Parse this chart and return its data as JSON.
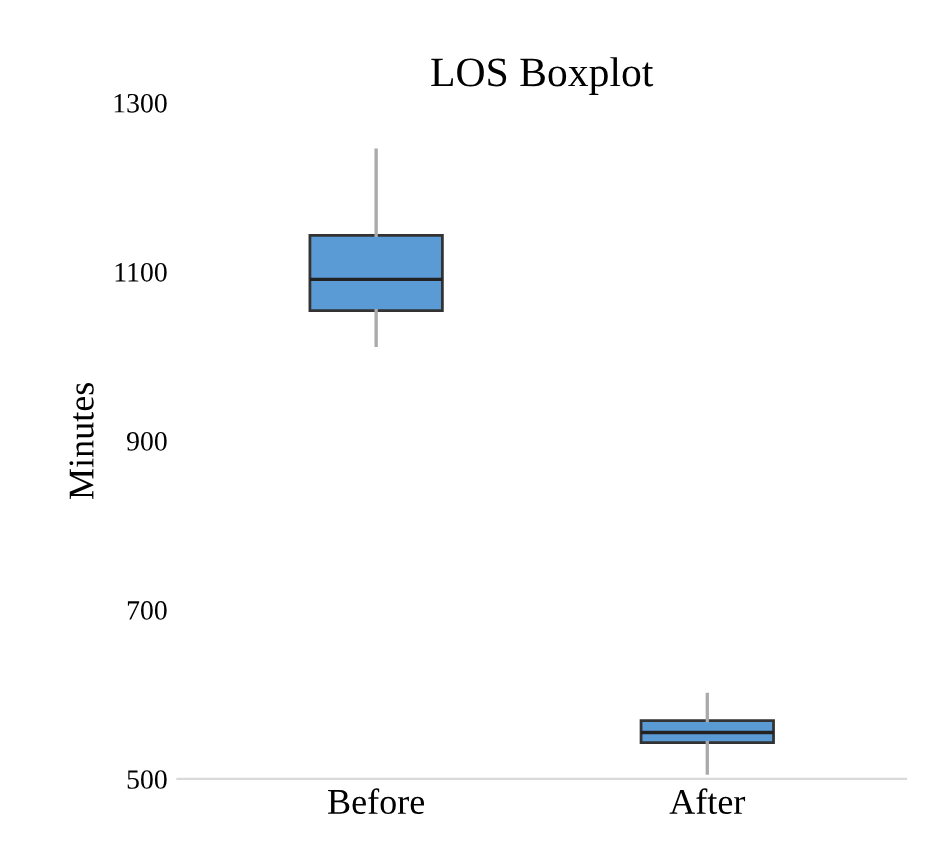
{
  "chart_data": {
    "type": "box",
    "title": "LOS Boxplot",
    "ylabel": "Minutes",
    "categories": [
      "Before",
      "After"
    ],
    "boxes": [
      {
        "low": 1013,
        "q1": 1054,
        "median": 1091,
        "q3": 1143,
        "high": 1244
      },
      {
        "low": 507,
        "q1": 543,
        "median": 555,
        "q3": 569,
        "high": 600
      }
    ],
    "color": "#5b9bd5",
    "ylim": [
      500,
      1300
    ],
    "yticks": [
      500,
      700,
      900,
      1100,
      1300
    ],
    "grid": false
  }
}
